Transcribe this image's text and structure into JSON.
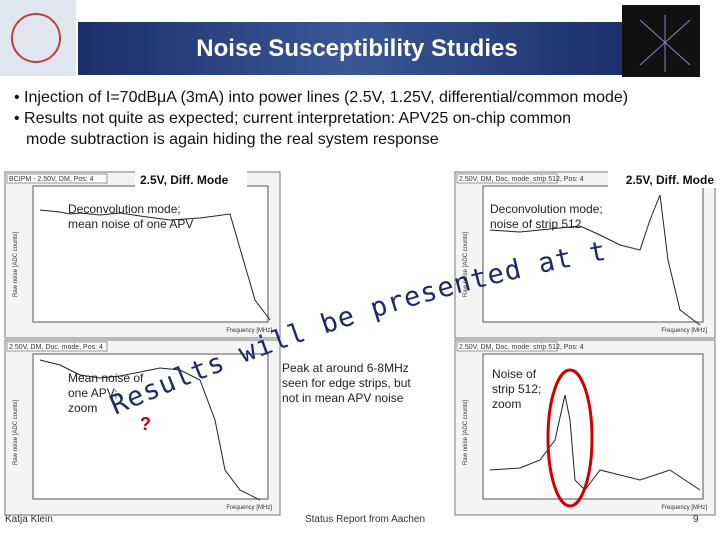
{
  "header": {
    "title": "Noise Susceptibility Studies"
  },
  "bullets": [
    [
      "• Injection of I=70dBμA (3mA) into power lines (2.5V, 1.25V, differential/common mode)"
    ],
    [
      "• Results not quite as expected; current interpretation: APV25 on-chip common",
      "mode subtraction is again hiding the real system response"
    ]
  ],
  "panels": [
    {
      "label": "2.5V, Diff. Mode",
      "plot_title": "BCIPM - 2.50V, DM, Pos: 4",
      "y_axis": "Raw noise [ADC counts]",
      "x_axis": "Frequency [MHz]",
      "note": [
        "Deconvolution mode;",
        "mean noise of one APV"
      ]
    },
    {
      "label": "2.5V, Diff. Mode",
      "plot_title": "2.50V, DM, Doc. mode, strip 512, Pos: 4",
      "y_axis": "Raw noise [ADC counts]",
      "x_axis": "Frequency [MHz]",
      "note": [
        "Deconvolution mode;",
        "noise of strip 512"
      ]
    },
    {
      "plot_title": "2.50V, DM, Doc. mode, Pos: 4",
      "y_axis": "Raw noise [ADC counts]",
      "x_axis": "Frequency [MHz]",
      "note": [
        "Mean noise of",
        "one APV;",
        "zoom"
      ]
    },
    {
      "plot_title": "2.50V, DM, Doc. mode: strip 512, Pos: 4",
      "y_axis": "Raw noise [ADC counts]",
      "x_axis": "Frequency [MHz]",
      "note": [
        "Noise of",
        "strip 512;",
        "zoom"
      ]
    }
  ],
  "peak_note": [
    "Peak at around 6-8MHz",
    "seen for edge strips, but",
    "not in mean APV noise"
  ],
  "overlay": "Results will be presented at the next meeting.",
  "question": "?",
  "footer": {
    "author": "Katja Klein",
    "event": "Status Report from Aachen",
    "page": "9"
  }
}
